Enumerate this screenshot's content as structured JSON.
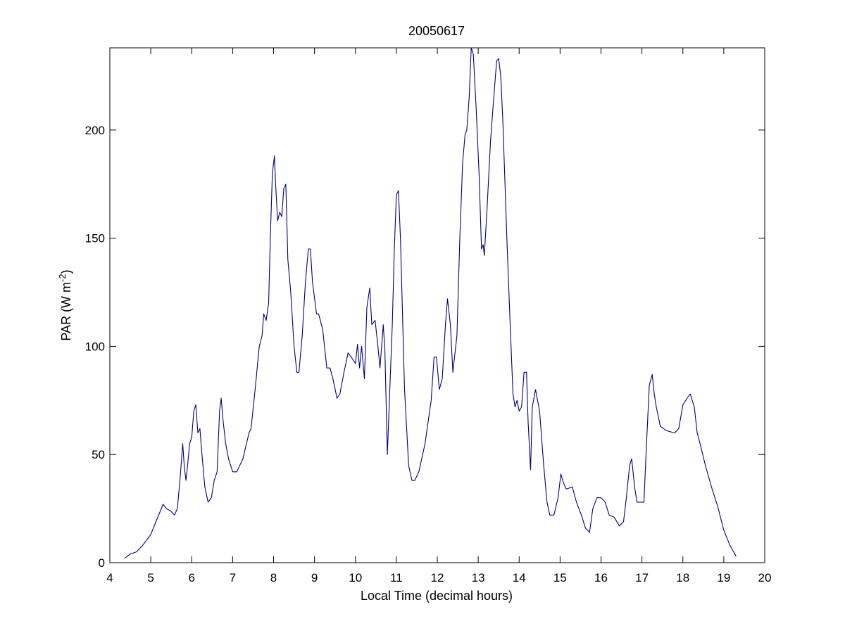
{
  "chart_data": {
    "type": "line",
    "title": "20050617",
    "xlabel": "Local Time (decimal hours)",
    "ylabel_prefix": "PAR (W m",
    "ylabel_exponent": "-2",
    "ylabel_suffix": ")",
    "xlim": [
      4,
      20
    ],
    "ylim": [
      0,
      238
    ],
    "x_ticks": [
      4,
      5,
      6,
      7,
      8,
      9,
      10,
      11,
      12,
      13,
      14,
      15,
      16,
      17,
      18,
      19,
      20
    ],
    "y_ticks": [
      0,
      50,
      100,
      150,
      200
    ],
    "grid": false,
    "line_color": "#00007f",
    "series": [
      {
        "points": [
          [
            4.36,
            2
          ],
          [
            4.5,
            4
          ],
          [
            4.65,
            5
          ],
          [
            4.8,
            8
          ],
          [
            5.0,
            13
          ],
          [
            5.15,
            20
          ],
          [
            5.3,
            27
          ],
          [
            5.38,
            25
          ],
          [
            5.48,
            24
          ],
          [
            5.58,
            22
          ],
          [
            5.65,
            25
          ],
          [
            5.72,
            40
          ],
          [
            5.78,
            55
          ],
          [
            5.82,
            44
          ],
          [
            5.86,
            38
          ],
          [
            5.9,
            45
          ],
          [
            5.95,
            55
          ],
          [
            6.0,
            58
          ],
          [
            6.05,
            70
          ],
          [
            6.1,
            73
          ],
          [
            6.15,
            60
          ],
          [
            6.2,
            62
          ],
          [
            6.25,
            50
          ],
          [
            6.32,
            35
          ],
          [
            6.4,
            28
          ],
          [
            6.48,
            30
          ],
          [
            6.55,
            38
          ],
          [
            6.62,
            42
          ],
          [
            6.68,
            70
          ],
          [
            6.72,
            76
          ],
          [
            6.77,
            65
          ],
          [
            6.83,
            55
          ],
          [
            6.9,
            48
          ],
          [
            7.0,
            42
          ],
          [
            7.1,
            42
          ],
          [
            7.25,
            48
          ],
          [
            7.4,
            60
          ],
          [
            7.45,
            62
          ],
          [
            7.55,
            80
          ],
          [
            7.65,
            100
          ],
          [
            7.72,
            105
          ],
          [
            7.76,
            115
          ],
          [
            7.82,
            112
          ],
          [
            7.88,
            120
          ],
          [
            7.92,
            150
          ],
          [
            7.97,
            180
          ],
          [
            8.02,
            188
          ],
          [
            8.05,
            175
          ],
          [
            8.1,
            158
          ],
          [
            8.15,
            162
          ],
          [
            8.2,
            160
          ],
          [
            8.25,
            173
          ],
          [
            8.3,
            175
          ],
          [
            8.35,
            140
          ],
          [
            8.42,
            125
          ],
          [
            8.5,
            100
          ],
          [
            8.57,
            88
          ],
          [
            8.62,
            88
          ],
          [
            8.7,
            105
          ],
          [
            8.78,
            130
          ],
          [
            8.85,
            145
          ],
          [
            8.9,
            145
          ],
          [
            8.95,
            130
          ],
          [
            9.05,
            115
          ],
          [
            9.1,
            115
          ],
          [
            9.2,
            108
          ],
          [
            9.3,
            90
          ],
          [
            9.38,
            90
          ],
          [
            9.45,
            85
          ],
          [
            9.55,
            76
          ],
          [
            9.62,
            78
          ],
          [
            9.72,
            88
          ],
          [
            9.82,
            97
          ],
          [
            9.9,
            95
          ],
          [
            10.0,
            92
          ],
          [
            10.05,
            101
          ],
          [
            10.1,
            90
          ],
          [
            10.15,
            100
          ],
          [
            10.22,
            85
          ],
          [
            10.28,
            118
          ],
          [
            10.35,
            127
          ],
          [
            10.4,
            110
          ],
          [
            10.48,
            112
          ],
          [
            10.55,
            100
          ],
          [
            10.6,
            90
          ],
          [
            10.68,
            110
          ],
          [
            10.72,
            98
          ],
          [
            10.78,
            50
          ],
          [
            10.82,
            70
          ],
          [
            10.9,
            110
          ],
          [
            10.95,
            145
          ],
          [
            11.0,
            170
          ],
          [
            11.05,
            172
          ],
          [
            11.1,
            150
          ],
          [
            11.2,
            80
          ],
          [
            11.3,
            45
          ],
          [
            11.38,
            38
          ],
          [
            11.45,
            38
          ],
          [
            11.55,
            42
          ],
          [
            11.7,
            55
          ],
          [
            11.85,
            75
          ],
          [
            11.92,
            95
          ],
          [
            11.98,
            95
          ],
          [
            12.05,
            80
          ],
          [
            12.12,
            85
          ],
          [
            12.2,
            110
          ],
          [
            12.25,
            122
          ],
          [
            12.32,
            110
          ],
          [
            12.38,
            88
          ],
          [
            12.48,
            105
          ],
          [
            12.55,
            150
          ],
          [
            12.62,
            185
          ],
          [
            12.68,
            198
          ],
          [
            12.72,
            200
          ],
          [
            12.78,
            215
          ],
          [
            12.83,
            238
          ],
          [
            12.88,
            235
          ],
          [
            12.95,
            210
          ],
          [
            13.02,
            180
          ],
          [
            13.08,
            145
          ],
          [
            13.12,
            147
          ],
          [
            13.15,
            142
          ],
          [
            13.22,
            165
          ],
          [
            13.3,
            195
          ],
          [
            13.38,
            215
          ],
          [
            13.45,
            232
          ],
          [
            13.5,
            233
          ],
          [
            13.55,
            225
          ],
          [
            13.6,
            205
          ],
          [
            13.7,
            150
          ],
          [
            13.78,
            110
          ],
          [
            13.85,
            78
          ],
          [
            13.9,
            72
          ],
          [
            13.95,
            75
          ],
          [
            14.0,
            70
          ],
          [
            14.06,
            72
          ],
          [
            14.12,
            88
          ],
          [
            14.18,
            88
          ],
          [
            14.22,
            65
          ],
          [
            14.28,
            43
          ],
          [
            14.32,
            72
          ],
          [
            14.4,
            80
          ],
          [
            14.5,
            70
          ],
          [
            14.6,
            45
          ],
          [
            14.68,
            28
          ],
          [
            14.75,
            22
          ],
          [
            14.85,
            22
          ],
          [
            14.95,
            30
          ],
          [
            15.02,
            41
          ],
          [
            15.08,
            37
          ],
          [
            15.15,
            34
          ],
          [
            15.3,
            35
          ],
          [
            15.4,
            28
          ],
          [
            15.52,
            22
          ],
          [
            15.62,
            16
          ],
          [
            15.72,
            14
          ],
          [
            15.8,
            25
          ],
          [
            15.9,
            30
          ],
          [
            16.0,
            30
          ],
          [
            16.1,
            28
          ],
          [
            16.2,
            22
          ],
          [
            16.32,
            21
          ],
          [
            16.45,
            17
          ],
          [
            16.55,
            19
          ],
          [
            16.62,
            30
          ],
          [
            16.7,
            45
          ],
          [
            16.75,
            48
          ],
          [
            16.82,
            35
          ],
          [
            16.88,
            28
          ],
          [
            16.95,
            28
          ],
          [
            17.05,
            28
          ],
          [
            17.1,
            50
          ],
          [
            17.18,
            82
          ],
          [
            17.25,
            87
          ],
          [
            17.3,
            78
          ],
          [
            17.35,
            72
          ],
          [
            17.45,
            63
          ],
          [
            17.6,
            61
          ],
          [
            17.8,
            60
          ],
          [
            17.9,
            62
          ],
          [
            18.0,
            73
          ],
          [
            18.1,
            76
          ],
          [
            18.18,
            78
          ],
          [
            18.28,
            72
          ],
          [
            18.35,
            60
          ],
          [
            18.42,
            55
          ],
          [
            18.55,
            45
          ],
          [
            18.7,
            35
          ],
          [
            18.85,
            26
          ],
          [
            19.0,
            15
          ],
          [
            19.15,
            8
          ],
          [
            19.3,
            3
          ]
        ]
      }
    ]
  }
}
